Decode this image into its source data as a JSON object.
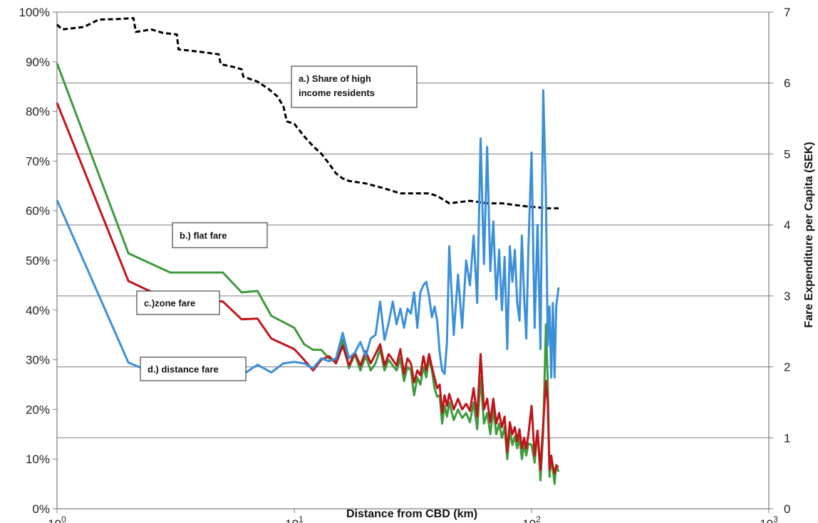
{
  "chart_data": {
    "type": "line",
    "title": "",
    "xlabel": "Distance from CBD (km)",
    "ylabel_left": "",
    "ylabel_right": "Fare Expenditure per Capita (SEK)",
    "x_scale": "log",
    "xlim": [
      1,
      1000
    ],
    "x_ticks": [
      {
        "value": 1,
        "base": "10",
        "exp": "0"
      },
      {
        "value": 10,
        "base": "10",
        "exp": "1"
      },
      {
        "value": 100,
        "base": "10",
        "exp": "2"
      },
      {
        "value": 1000,
        "base": "10",
        "exp": "3"
      }
    ],
    "ylim_left": [
      0,
      100
    ],
    "y_ticks_left": [
      "0%",
      "10%",
      "20%",
      "30%",
      "40%",
      "50%",
      "60%",
      "70%",
      "80%",
      "90%",
      "100%"
    ],
    "ylim_right": [
      0,
      7
    ],
    "y_ticks_right": [
      "0",
      "1",
      "2",
      "3",
      "4",
      "5",
      "6",
      "7"
    ],
    "grid": "horizontal",
    "legend": "none",
    "annotations": [
      {
        "line1": "a.) Share of high",
        "line2": "income residents",
        "series": "a"
      },
      {
        "line1": "b.) flat fare",
        "series": "b"
      },
      {
        "line1": "c.)zone fare",
        "series": "c"
      },
      {
        "line1": "d.) distance fare",
        "series": "d"
      }
    ],
    "series": [
      {
        "id": "a",
        "axis": "left",
        "color": "#000000",
        "style": "dashed",
        "points": [
          [
            1,
            97.5
          ],
          [
            1.05,
            96.5
          ],
          [
            1.3,
            97
          ],
          [
            1.5,
            98.5
          ],
          [
            1.8,
            98.6
          ],
          [
            2.1,
            98.8
          ],
          [
            2.15,
            96
          ],
          [
            2.5,
            96.5
          ],
          [
            2.8,
            95.8
          ],
          [
            3.2,
            95.5
          ],
          [
            3.25,
            92.5
          ],
          [
            4,
            92
          ],
          [
            4.8,
            91.5
          ],
          [
            4.9,
            89.5
          ],
          [
            5.5,
            89
          ],
          [
            6,
            88.5
          ],
          [
            6.1,
            87
          ],
          [
            7,
            86
          ],
          [
            7.8,
            84.5
          ],
          [
            8.5,
            83
          ],
          [
            9,
            81
          ],
          [
            9.3,
            78
          ],
          [
            10,
            77.5
          ],
          [
            11,
            75
          ],
          [
            12,
            73
          ],
          [
            13,
            71.5
          ],
          [
            14,
            69.5
          ],
          [
            15,
            67.5
          ],
          [
            16,
            66.5
          ],
          [
            17,
            66
          ],
          [
            20,
            65.5
          ],
          [
            24,
            64.5
          ],
          [
            28,
            63.5
          ],
          [
            33,
            63.5
          ],
          [
            37,
            63.5
          ],
          [
            40,
            63
          ],
          [
            45,
            61.5
          ],
          [
            55,
            62
          ],
          [
            65,
            61.5
          ],
          [
            75,
            61.5
          ],
          [
            90,
            61
          ],
          [
            105,
            60.7
          ],
          [
            115,
            60.5
          ],
          [
            130,
            60.5
          ]
        ]
      },
      {
        "id": "b",
        "axis": "right",
        "color": "#3d9a3d",
        "style": "solid",
        "points": [
          [
            1,
            6.28
          ],
          [
            2,
            3.6
          ],
          [
            3,
            3.33
          ],
          [
            4,
            3.33
          ],
          [
            5,
            3.33
          ],
          [
            6,
            3.05
          ],
          [
            7,
            3.07
          ],
          [
            8,
            2.72
          ],
          [
            10,
            2.55
          ],
          [
            11,
            2.32
          ],
          [
            12,
            2.24
          ],
          [
            13,
            2.24
          ],
          [
            14,
            2.12
          ],
          [
            15,
            2.08
          ],
          [
            16,
            2.38
          ],
          [
            17,
            1.98
          ],
          [
            18,
            2.18
          ],
          [
            19,
            1.95
          ],
          [
            20,
            2.15
          ],
          [
            21,
            1.95
          ],
          [
            22,
            2.05
          ],
          [
            23,
            2.25
          ],
          [
            24,
            1.95
          ],
          [
            25,
            2.1
          ],
          [
            26,
            2.02
          ],
          [
            27,
            1.95
          ],
          [
            28,
            2.12
          ],
          [
            29,
            1.8
          ],
          [
            30,
            2.0
          ],
          [
            31,
            1.95
          ],
          [
            32,
            1.6
          ],
          [
            33,
            1.85
          ],
          [
            34,
            1.75
          ],
          [
            35,
            2.0
          ],
          [
            36,
            1.85
          ],
          [
            37,
            2.12
          ],
          [
            38,
            1.95
          ],
          [
            39,
            1.7
          ],
          [
            40,
            1.58
          ],
          [
            41,
            1.6
          ],
          [
            42,
            1.2
          ],
          [
            43,
            1.45
          ],
          [
            44,
            1.3
          ],
          [
            45,
            1.5
          ],
          [
            47,
            1.25
          ],
          [
            49,
            1.4
          ],
          [
            51,
            1.28
          ],
          [
            53,
            1.35
          ],
          [
            55,
            1.22
          ],
          [
            57,
            1.5
          ],
          [
            59,
            1.12
          ],
          [
            61,
            1.85
          ],
          [
            63,
            1.2
          ],
          [
            65,
            1.35
          ],
          [
            67,
            1.05
          ],
          [
            69,
            1.4
          ],
          [
            71,
            1.05
          ],
          [
            73,
            1.2
          ],
          [
            75,
            1.0
          ],
          [
            77,
            1.15
          ],
          [
            79,
            0.7
          ],
          [
            81,
            1.1
          ],
          [
            83,
            0.9
          ],
          [
            85,
            1.02
          ],
          [
            87,
            0.85
          ],
          [
            89,
            1.0
          ],
          [
            91,
            0.7
          ],
          [
            93,
            0.9
          ],
          [
            95,
            0.75
          ],
          [
            97,
            0.92
          ],
          [
            100,
            0.9
          ],
          [
            103,
            0.65
          ],
          [
            106,
            1.1
          ],
          [
            109,
            0.4
          ],
          [
            112,
            1.1
          ],
          [
            115,
            2.6
          ],
          [
            117,
            1.8
          ],
          [
            119,
            0.45
          ],
          [
            121,
            0.72
          ],
          [
            123,
            0.55
          ],
          [
            125,
            0.35
          ],
          [
            127,
            0.62
          ],
          [
            130,
            0.52
          ]
        ]
      },
      {
        "id": "c",
        "axis": "right",
        "color": "#c0141a",
        "style": "solid",
        "points": [
          [
            1,
            5.72
          ],
          [
            2,
            3.21
          ],
          [
            3,
            2.93
          ],
          [
            4,
            2.95
          ],
          [
            5,
            2.92
          ],
          [
            6,
            2.67
          ],
          [
            7,
            2.68
          ],
          [
            8,
            2.4
          ],
          [
            10,
            2.25
          ],
          [
            11,
            2.1
          ],
          [
            12,
            1.95
          ],
          [
            13,
            2.1
          ],
          [
            14,
            2.15
          ],
          [
            15,
            2.05
          ],
          [
            16,
            2.3
          ],
          [
            17,
            2.02
          ],
          [
            18,
            2.2
          ],
          [
            19,
            2.02
          ],
          [
            20,
            2.22
          ],
          [
            21,
            2.05
          ],
          [
            22,
            2.18
          ],
          [
            23,
            2.32
          ],
          [
            24,
            2.02
          ],
          [
            25,
            2.18
          ],
          [
            26,
            2.1
          ],
          [
            27,
            2.02
          ],
          [
            28,
            2.25
          ],
          [
            29,
            1.9
          ],
          [
            30,
            2.12
          ],
          [
            31,
            2.05
          ],
          [
            32,
            1.78
          ],
          [
            33,
            1.95
          ],
          [
            34,
            1.88
          ],
          [
            35,
            2.15
          ],
          [
            36,
            1.95
          ],
          [
            37,
            2.18
          ],
          [
            38,
            2.0
          ],
          [
            39,
            1.85
          ],
          [
            40,
            1.7
          ],
          [
            41,
            1.75
          ],
          [
            42,
            1.35
          ],
          [
            43,
            1.6
          ],
          [
            44,
            1.45
          ],
          [
            45,
            1.62
          ],
          [
            47,
            1.4
          ],
          [
            49,
            1.55
          ],
          [
            51,
            1.4
          ],
          [
            53,
            1.48
          ],
          [
            55,
            1.38
          ],
          [
            57,
            1.7
          ],
          [
            59,
            1.3
          ],
          [
            61,
            2.18
          ],
          [
            63,
            1.4
          ],
          [
            65,
            1.55
          ],
          [
            67,
            1.22
          ],
          [
            69,
            1.55
          ],
          [
            71,
            1.2
          ],
          [
            73,
            1.35
          ],
          [
            75,
            1.15
          ],
          [
            77,
            1.3
          ],
          [
            79,
            0.8
          ],
          [
            81,
            1.22
          ],
          [
            83,
            1.05
          ],
          [
            85,
            1.15
          ],
          [
            87,
            0.95
          ],
          [
            89,
            1.12
          ],
          [
            91,
            0.85
          ],
          [
            93,
            1.0
          ],
          [
            95,
            0.85
          ],
          [
            97,
            1.05
          ],
          [
            100,
            1.45
          ],
          [
            103,
            0.75
          ],
          [
            106,
            1.1
          ],
          [
            109,
            0.55
          ],
          [
            112,
            1.2
          ],
          [
            115,
            1.8
          ],
          [
            117,
            1.5
          ],
          [
            119,
            0.55
          ],
          [
            121,
            0.75
          ],
          [
            123,
            0.6
          ],
          [
            125,
            0.5
          ],
          [
            127,
            0.6
          ],
          [
            130,
            0.6
          ]
        ]
      },
      {
        "id": "d",
        "axis": "right",
        "color": "#3b8fd9",
        "style": "solid",
        "points": [
          [
            1,
            4.35
          ],
          [
            2,
            2.06
          ],
          [
            3,
            1.82
          ],
          [
            4,
            2.0
          ],
          [
            5,
            1.95
          ],
          [
            6,
            1.88
          ],
          [
            7,
            2.03
          ],
          [
            8,
            1.92
          ],
          [
            9,
            2.05
          ],
          [
            10,
            2.07
          ],
          [
            11,
            2.05
          ],
          [
            12,
            1.98
          ],
          [
            13,
            2.12
          ],
          [
            14,
            2.08
          ],
          [
            15,
            2.12
          ],
          [
            16,
            2.48
          ],
          [
            17,
            2.12
          ],
          [
            18,
            2.2
          ],
          [
            19,
            2.35
          ],
          [
            20,
            2.15
          ],
          [
            21,
            2.4
          ],
          [
            22,
            2.45
          ],
          [
            23,
            2.92
          ],
          [
            24,
            2.38
          ],
          [
            25,
            2.62
          ],
          [
            26,
            2.92
          ],
          [
            27,
            2.6
          ],
          [
            28,
            2.82
          ],
          [
            29,
            2.55
          ],
          [
            30,
            2.82
          ],
          [
            31,
            2.75
          ],
          [
            32,
            3.05
          ],
          [
            33,
            2.55
          ],
          [
            34,
            3.05
          ],
          [
            35,
            3.15
          ],
          [
            36,
            3.2
          ],
          [
            37,
            3.0
          ],
          [
            38,
            2.7
          ],
          [
            39,
            2.85
          ],
          [
            40,
            2.65
          ],
          [
            41,
            2.2
          ],
          [
            42,
            1.95
          ],
          [
            43,
            1.9
          ],
          [
            44,
            2.35
          ],
          [
            45,
            3.7
          ],
          [
            47,
            2.45
          ],
          [
            49,
            3.3
          ],
          [
            51,
            2.55
          ],
          [
            53,
            3.5
          ],
          [
            55,
            3.15
          ],
          [
            57,
            3.85
          ],
          [
            59,
            2.9
          ],
          [
            61,
            5.22
          ],
          [
            63,
            3.45
          ],
          [
            65,
            5.1
          ],
          [
            67,
            3.35
          ],
          [
            69,
            4.05
          ],
          [
            71,
            2.95
          ],
          [
            73,
            3.65
          ],
          [
            75,
            2.8
          ],
          [
            77,
            3.55
          ],
          [
            79,
            2.25
          ],
          [
            81,
            3.7
          ],
          [
            83,
            3.2
          ],
          [
            85,
            3.65
          ],
          [
            87,
            2.9
          ],
          [
            89,
            2.65
          ],
          [
            91,
            3.85
          ],
          [
            93,
            3.0
          ],
          [
            95,
            2.4
          ],
          [
            97,
            3.7
          ],
          [
            100,
            5.02
          ],
          [
            103,
            2.55
          ],
          [
            106,
            4.0
          ],
          [
            109,
            2.25
          ],
          [
            112,
            5.9
          ],
          [
            115,
            4.4
          ],
          [
            117,
            2.3
          ],
          [
            119,
            2.85
          ],
          [
            121,
            1.85
          ],
          [
            123,
            2.9
          ],
          [
            125,
            1.85
          ],
          [
            127,
            2.85
          ],
          [
            130,
            3.12
          ]
        ]
      }
    ]
  }
}
